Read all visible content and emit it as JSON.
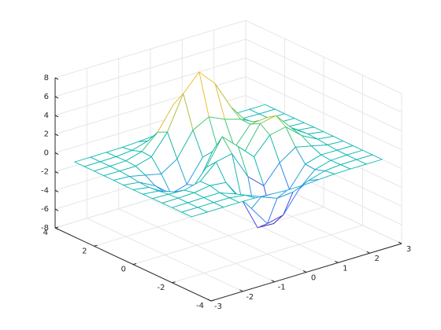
{
  "chart_data": {
    "type": "mesh",
    "x": [
      -3,
      -2.5,
      -2,
      -1.5,
      -1,
      -0.5,
      0,
      0.5,
      1,
      1.5,
      2,
      2.5,
      3
    ],
    "y": [
      -3,
      -2.5,
      -2,
      -1.5,
      -1,
      -0.5,
      0,
      0.5,
      1,
      1.5,
      2,
      2.5,
      3
    ],
    "z": [
      [
        0,
        0,
        0,
        0,
        -0.03,
        -0.14,
        -0.24,
        -0.22,
        -0.11,
        -0.03,
        0,
        0,
        0
      ],
      [
        0,
        0,
        0.01,
        0,
        -0.23,
        -0.91,
        -1.57,
        -1.41,
        -0.69,
        -0.18,
        -0.03,
        0,
        0
      ],
      [
        0,
        0.01,
        0.05,
        0.05,
        -0.59,
        -2.64,
        -4.76,
        -4.35,
        -2.1,
        -0.53,
        -0.06,
        0,
        0
      ],
      [
        0,
        0.01,
        0.08,
        0.33,
        0.15,
        -2.18,
        -5.68,
        -5.76,
        -2.63,
        -0.44,
        0.04,
        0.03,
        0
      ],
      [
        -0.01,
        -0.06,
        -0.13,
        0.3,
        1.86,
        2.22,
        -0.72,
        -2.22,
        -0.27,
        0.88,
        0.5,
        0.11,
        0.01
      ],
      [
        -0.03,
        -0.2,
        -0.8,
        -1.21,
        0.8,
        3.55,
        2.0,
        0.39,
        2.2,
        2.56,
        1.12,
        0.24,
        0.03
      ],
      [
        -0.04,
        -0.3,
        -1.33,
        -2.77,
        -1.65,
        1.48,
        0.98,
        0.38,
        2.94,
        3.27,
        1.41,
        0.3,
        0.03
      ],
      [
        -0.03,
        -0.25,
        -1.12,
        -2.49,
        -2.0,
        0.39,
        0.46,
        0.38,
        2.38,
        2.56,
        1.09,
        0.23,
        0.03
      ],
      [
        -0.01,
        -0.11,
        -0.48,
        -0.86,
        0.23,
        2.79,
        3.69,
        2.93,
        2.43,
        1.58,
        0.58,
        0.11,
        0.01
      ],
      [
        0,
        -0.02,
        -0.01,
        0.48,
        2.61,
        6.19,
        7.99,
        6.25,
        3.25,
        1.18,
        0.29,
        0.05,
        0
      ],
      [
        0,
        0.01,
        0.08,
        0.55,
        2.1,
        4.56,
        5.86,
        4.57,
        2.21,
        0.68,
        0.13,
        0.02,
        0
      ],
      [
        0,
        0,
        0.03,
        0.19,
        0.69,
        1.47,
        1.88,
        1.47,
        0.7,
        0.21,
        0.04,
        0,
        0
      ],
      [
        0,
        0,
        0.01,
        0.03,
        0.11,
        0.23,
        0.3,
        0.23,
        0.11,
        0.03,
        0.01,
        0,
        0
      ]
    ],
    "xlim": [
      -3,
      3
    ],
    "ylim": [
      -4,
      4
    ],
    "zlim": [
      -8,
      8
    ],
    "xticks": [
      -3,
      -2,
      -1,
      0,
      1,
      2,
      3
    ],
    "yticks": [
      -4,
      -2,
      0,
      2,
      4
    ],
    "zticks": [
      -8,
      -6,
      -4,
      -2,
      0,
      2,
      4,
      6,
      8
    ],
    "grid": true,
    "colormap": [
      "#3e26a8",
      "#4743e5",
      "#347ffc",
      "#1f9ed9",
      "#0bb8b0",
      "#3dc57a",
      "#a6c13c",
      "#f0ba32",
      "#fadd23",
      "#f9fb0e"
    ]
  }
}
